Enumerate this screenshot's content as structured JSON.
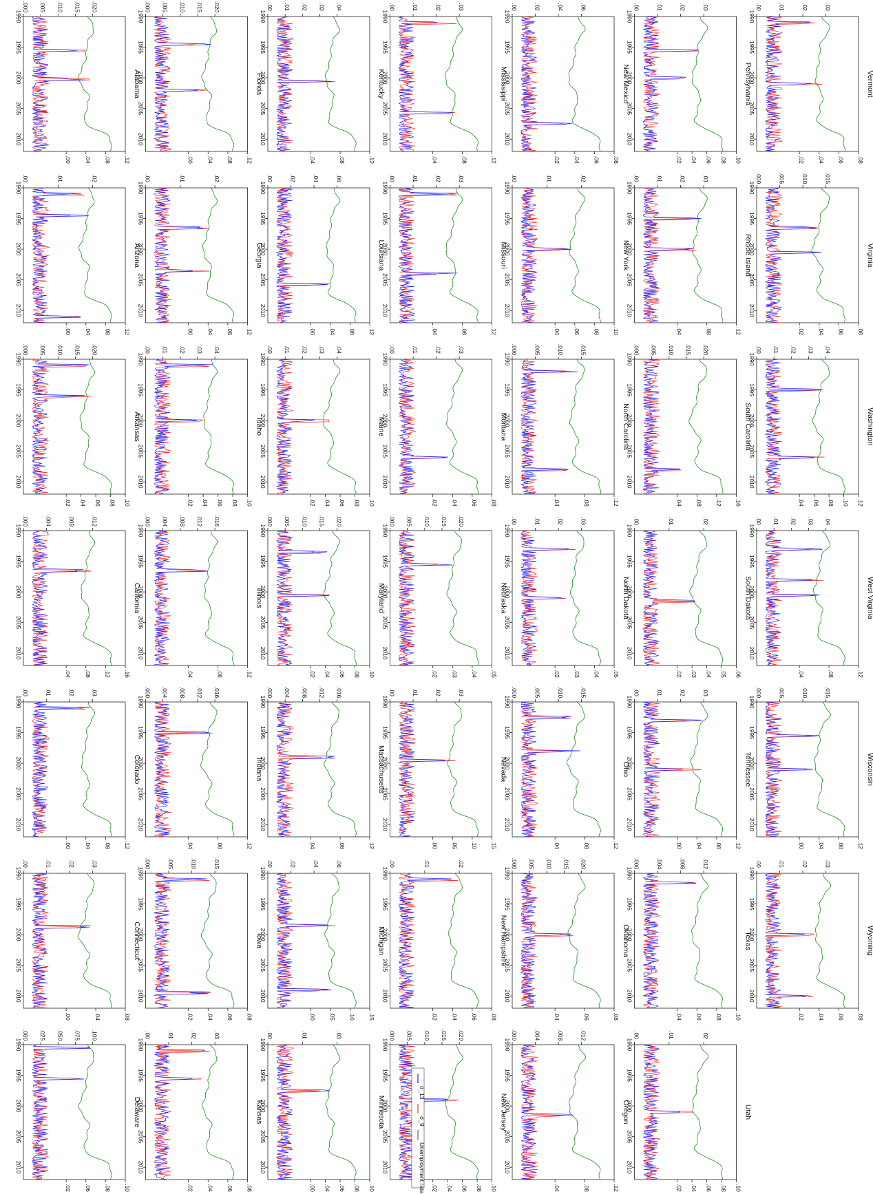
{
  "chart_data": {
    "type": "line",
    "orientation": "rotated-90-clockwise",
    "x_ticks": [
      "1990",
      "1995",
      "2000",
      "2005",
      "2010"
    ],
    "x_range": [
      1990,
      2012
    ],
    "series_styles": {
      "sigma_13": {
        "color": "#1f1fff"
      },
      "sigma_9": {
        "color": "#ff2a2a"
      },
      "unemployment": {
        "color": "#1a8f1a"
      }
    },
    "legend": {
      "placement": "bottom-center",
      "entries": [
        {
          "label": "σ_13",
          "color": "#1f1fff"
        },
        {
          "label": "σ_9",
          "color": "#ff2a2a"
        },
        {
          "label": "Unemployment rate",
          "color": "#1a8f1a"
        }
      ]
    },
    "panels": [
      {
        "state": "Alabama",
        "left_ticks": [
          ".000",
          ".005",
          ".010",
          ".015",
          ".020"
        ],
        "right_ticks": [
          ".00",
          ".04",
          ".08",
          ".12"
        ],
        "spikes": [
          1995.5,
          2000.2
        ]
      },
      {
        "state": "Arizona",
        "left_ticks": [
          ".00",
          ".01",
          ".02"
        ],
        "right_ticks": [
          ".00",
          ".04",
          ".08",
          ".12"
        ],
        "spikes": [
          1991.0,
          1994.5,
          2011.0
        ]
      },
      {
        "state": "Arkansas",
        "left_ticks": [
          ".000",
          ".005",
          ".010",
          ".015",
          ".020"
        ],
        "right_ticks": [
          ".02",
          ".04",
          ".06",
          ".08",
          ".10"
        ],
        "spikes": [
          1991.0,
          1996.0
        ]
      },
      {
        "state": "California",
        "left_ticks": [
          ".000",
          ".004",
          ".008",
          ".012"
        ],
        "right_ticks": [
          ".04",
          ".08",
          ".12",
          ".16"
        ],
        "spikes": [
          1996.5
        ]
      },
      {
        "state": "Colorado",
        "left_ticks": [
          ".00",
          ".01",
          ".02",
          ".03"
        ],
        "right_ticks": [
          ".00",
          ".04",
          ".08",
          ".12"
        ],
        "spikes": [
          1991.0
        ]
      },
      {
        "state": "Connecticut",
        "left_ticks": [
          ".00",
          ".01",
          ".02",
          ".03"
        ],
        "right_ticks": [
          ".00",
          ".04",
          ".08"
        ],
        "spikes": [
          1998.7
        ]
      },
      {
        "state": "Delaware",
        "left_ticks": [
          ".000",
          ".025",
          ".050",
          ".075",
          ".100"
        ],
        "right_ticks": [
          ".02",
          ".06",
          ".08",
          ".10"
        ],
        "spikes": [
          1990.5,
          1995.5
        ]
      },
      {
        "state": "Florida",
        "left_ticks": [
          ".000",
          ".005",
          ".010",
          ".015",
          ".020"
        ],
        "right_ticks": [
          ".00",
          ".04",
          ".08",
          ".12"
        ],
        "spikes": [
          1994.5,
          2002.0
        ]
      },
      {
        "state": "Georgia",
        "left_ticks": [
          ".00",
          ".01",
          ".02"
        ],
        "right_ticks": [
          ".00",
          ".04",
          ".08",
          ".12"
        ],
        "spikes": [
          1996.5,
          2003.5
        ]
      },
      {
        "state": "Idaho",
        "left_ticks": [
          ".00",
          ".01",
          ".02",
          ".03",
          ".04"
        ],
        "right_ticks": [
          ".02",
          ".04",
          ".06",
          ".08",
          ".10"
        ],
        "spikes": [
          1991.0,
          2000.0
        ]
      },
      {
        "state": "Illinois",
        "left_ticks": [
          ".000",
          ".004",
          ".008",
          ".012",
          ".016"
        ],
        "right_ticks": [
          ".04",
          ".08",
          ".12"
        ],
        "spikes": [
          1996.5
        ]
      },
      {
        "state": "Indiana",
        "left_ticks": [
          ".000",
          ".004",
          ".008",
          ".012",
          ".016"
        ],
        "right_ticks": [
          ".04",
          ".08",
          ".12"
        ],
        "spikes": [
          1995.0
        ]
      },
      {
        "state": "Iowa",
        "left_ticks": [
          ".000",
          ".005",
          ".010",
          ".015"
        ],
        "right_ticks": [
          ".02",
          ".04",
          ".06",
          ".08"
        ],
        "spikes": [
          1991.0,
          2009.5
        ]
      },
      {
        "state": "Kansas",
        "left_ticks": [
          ".00",
          ".01",
          ".02",
          ".03"
        ],
        "right_ticks": [
          ".02",
          ".04",
          ".06",
          ".08"
        ],
        "spikes": [
          1991.0,
          1995.5
        ]
      },
      {
        "state": "Kentucky",
        "left_ticks": [
          ".00",
          ".01",
          ".02",
          ".03",
          ".04"
        ],
        "right_ticks": [
          ".04",
          ".08",
          ".12"
        ],
        "spikes": [
          2000.5
        ]
      },
      {
        "state": "Louisiana",
        "left_ticks": [
          ".00",
          ".02",
          ".04",
          ".06"
        ],
        "right_ticks": [
          ".00",
          ".04",
          ".08",
          ".12"
        ],
        "spikes": [
          2005.7
        ]
      },
      {
        "state": "Maine",
        "left_ticks": [
          ".00",
          ".01",
          ".02",
          ".03",
          ".04"
        ],
        "right_ticks": [
          ".02",
          ".04",
          ".06",
          ".08",
          ".10"
        ],
        "spikes": [
          2000.0
        ]
      },
      {
        "state": "Maryland",
        "left_ticks": [
          ".000",
          ".005",
          ".010",
          ".015",
          ".020"
        ],
        "right_ticks": [
          ".02",
          ".04",
          ".06",
          ".08",
          ".10"
        ],
        "spikes": [
          1993.5,
          2000.5
        ]
      },
      {
        "state": "Massachusetts",
        "left_ticks": [
          ".000",
          ".004",
          ".008",
          ".012",
          ".016"
        ],
        "right_ticks": [
          ".04",
          ".08",
          ".12"
        ],
        "spikes": [
          1999.0
        ]
      },
      {
        "state": "Michigan",
        "left_ticks": [
          ".00",
          ".02",
          ".04",
          ".06"
        ],
        "right_ticks": [
          ".00",
          ".05",
          ".10",
          ".15"
        ],
        "spikes": [
          1998.5,
          2009.0
        ]
      },
      {
        "state": "Minnesota",
        "left_ticks": [
          ".00",
          ".01",
          ".03"
        ],
        "right_ticks": [
          ".00",
          ".04",
          ".06",
          ".08",
          ".10"
        ],
        "spikes": [
          1997.5
        ]
      },
      {
        "state": "Mississippi",
        "left_ticks": [
          ".00",
          ".01",
          ".02",
          ".03"
        ],
        "right_ticks": [
          ".04",
          ".08",
          ".12"
        ],
        "spikes": [
          1991.0,
          2005.7
        ]
      },
      {
        "state": "Missouri",
        "left_ticks": [
          ".00",
          ".01",
          ".02",
          ".03"
        ],
        "right_ticks": [
          ".04",
          ".08",
          ".12"
        ],
        "spikes": [
          1991.0,
          2004.0
        ]
      },
      {
        "state": "Montana",
        "left_ticks": [
          ".00",
          ".01",
          ".02",
          ".03"
        ],
        "right_ticks": [
          ".02",
          ".04",
          ".06",
          ".08"
        ],
        "spikes": [
          2006.0
        ]
      },
      {
        "state": "Nebraska",
        "left_ticks": [
          ".000",
          ".005",
          ".010",
          ".015",
          ".020"
        ],
        "right_ticks": [
          ".02",
          ".03",
          ".04",
          ".05"
        ],
        "spikes": [
          1995.5
        ]
      },
      {
        "state": "Nevada",
        "left_ticks": [
          ".00",
          ".01",
          ".02",
          ".03"
        ],
        "right_ticks": [
          ".00",
          ".05",
          ".10",
          ".15"
        ],
        "spikes": [
          1999.5
        ]
      },
      {
        "state": "New Hampshire",
        "left_ticks": [
          ".00",
          ".01",
          ".02"
        ],
        "right_ticks": [
          ".02",
          ".04",
          ".06",
          ".08"
        ],
        "spikes": [
          1991.0
        ]
      },
      {
        "state": "New Jersey",
        "left_ticks": [
          ".000",
          ".005",
          ".010",
          ".015",
          ".020"
        ],
        "right_ticks": [
          ".02",
          ".04",
          ".06",
          ".08",
          ".10"
        ],
        "spikes": [
          1999.0
        ]
      },
      {
        "state": "New Mexico",
        "left_ticks": [
          ".00",
          ".02",
          ".04",
          ".06"
        ],
        "right_ticks": [
          ".02",
          ".04",
          ".06",
          ".08"
        ],
        "spikes": [
          2007.5
        ]
      },
      {
        "state": "New York",
        "left_ticks": [
          ".00",
          ".01",
          ".02"
        ],
        "right_ticks": [
          ".04",
          ".06",
          ".08",
          ".10"
        ],
        "spikes": [
          2000.0
        ]
      },
      {
        "state": "North Carolina",
        "left_ticks": [
          ".000",
          ".005",
          ".010",
          ".015"
        ],
        "right_ticks": [
          ".04",
          ".08",
          ".12"
        ],
        "spikes": [
          1992.0,
          2008.0
        ]
      },
      {
        "state": "North Dakota",
        "left_ticks": [
          ".00",
          ".01",
          ".02",
          ".03"
        ],
        "right_ticks": [
          ".02",
          ".03",
          ".04",
          ".05"
        ],
        "spikes": [
          1993.0,
          2001.0
        ]
      },
      {
        "state": "Ohio",
        "left_ticks": [
          ".000",
          ".005",
          ".010",
          ".015"
        ],
        "right_ticks": [
          ".04",
          ".08",
          ".12"
        ],
        "spikes": [
          1992.5,
          1998.0
        ]
      },
      {
        "state": "Oklahoma",
        "left_ticks": [
          ".000",
          ".005",
          ".010",
          ".015",
          ".020"
        ],
        "right_ticks": [
          ".04",
          ".06",
          ".08"
        ],
        "spikes": [
          2000.0
        ]
      },
      {
        "state": "Oregon",
        "left_ticks": [
          ".000",
          ".004",
          ".008",
          ".012"
        ],
        "right_ticks": [
          ".04",
          ".08",
          ".12"
        ],
        "spikes": [
          2001.5
        ]
      },
      {
        "state": "Pennsylvania",
        "left_ticks": [
          ".00",
          ".01",
          ".02",
          ".03"
        ],
        "right_ticks": [
          ".02",
          ".04",
          ".06",
          ".08",
          ".10"
        ],
        "spikes": [
          1995.5,
          2000.0
        ]
      },
      {
        "state": "Rhode Island",
        "left_ticks": [
          ".00",
          ".01",
          ".02",
          ".03"
        ],
        "right_ticks": [
          ".04",
          ".08",
          ".12"
        ],
        "spikes": [
          1995.0,
          2000.0
        ]
      },
      {
        "state": "South Carolina",
        "left_ticks": [
          ".000",
          ".005",
          ".010",
          ".015",
          ".020"
        ],
        "right_ticks": [
          ".04",
          ".08",
          ".12",
          ".16"
        ],
        "spikes": [
          2008.0
        ]
      },
      {
        "state": "South Dakota",
        "left_ticks": [
          ".00",
          ".01",
          ".02"
        ],
        "right_ticks": [
          ".02",
          ".03",
          ".04",
          ".05",
          ".06"
        ],
        "spikes": [
          2001.5
        ]
      },
      {
        "state": "Tennessee",
        "left_ticks": [
          ".00",
          ".01",
          ".02",
          ".03"
        ],
        "right_ticks": [
          ".00",
          ".04",
          ".08",
          ".12"
        ],
        "spikes": [
          1993.0,
          2001.0
        ]
      },
      {
        "state": "Texas",
        "left_ticks": [
          ".000",
          ".004",
          ".008",
          ".012"
        ],
        "right_ticks": [
          ".04",
          ".06",
          ".08",
          ".10"
        ],
        "spikes": [
          1991.5
        ]
      },
      {
        "state": "Utah",
        "left_ticks": [
          ".00",
          ".01",
          ".02"
        ],
        "right_ticks": [
          ".02",
          ".04",
          ".06",
          ".08",
          ".10"
        ],
        "spikes": [
          2001.0
        ]
      },
      {
        "state": "Vermont",
        "left_ticks": [
          ".00",
          ".01",
          ".02",
          ".03"
        ],
        "right_ticks": [
          ".02",
          ".04",
          ".06",
          ".08"
        ],
        "spikes": [
          1991.0,
          2001.0
        ]
      },
      {
        "state": "Virginia",
        "left_ticks": [
          ".000",
          ".005",
          ".010",
          ".015"
        ],
        "right_ticks": [
          ".02",
          ".04",
          ".06",
          ".08"
        ],
        "spikes": [
          1996.5,
          2000.5
        ]
      },
      {
        "state": "Washington",
        "left_ticks": [
          ".00",
          ".01",
          ".02",
          ".03",
          ".04"
        ],
        "right_ticks": [
          ".04",
          ".06",
          ".08",
          ".10",
          ".12"
        ],
        "spikes": [
          1995.0,
          2006.0
        ]
      },
      {
        "state": "West Virginia",
        "left_ticks": [
          ".00",
          ".01",
          ".02",
          ".03",
          ".04"
        ],
        "right_ticks": [
          ".04",
          ".08",
          ".12"
        ],
        "spikes": [
          1993.0,
          1998.0,
          2000.5
        ]
      },
      {
        "state": "Wisconsin",
        "left_ticks": [
          ".000",
          ".005",
          ".010",
          ".015"
        ],
        "right_ticks": [
          ".00",
          ".04",
          ".08",
          ".12"
        ],
        "spikes": [
          1995.5,
          2001.0
        ]
      },
      {
        "state": "Wyoming",
        "left_ticks": [
          ".00",
          ".01",
          ".02",
          ".03"
        ],
        "right_ticks": [
          ".02",
          ".04",
          ".06",
          ".08"
        ],
        "spikes": [
          2000.0,
          2010.0
        ]
      }
    ]
  }
}
